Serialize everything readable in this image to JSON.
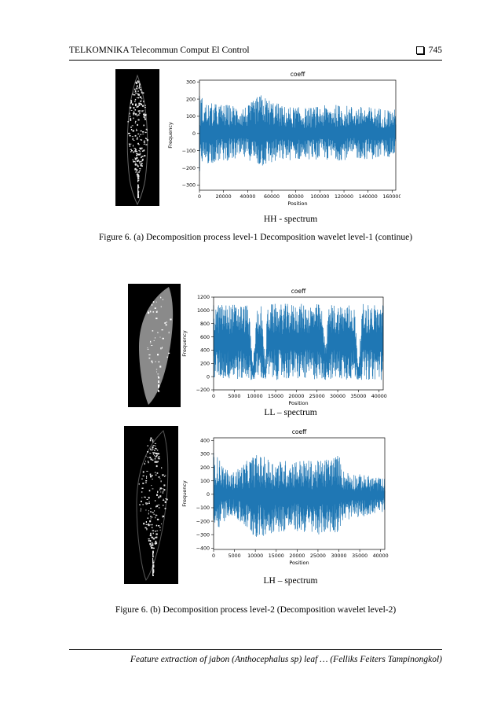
{
  "header": {
    "journal": "TELKOMNIKA Telecommun Comput El Control",
    "page": "745"
  },
  "captions": {
    "hh": "HH - spectrum",
    "fig6a": "Figure 6. (a) Decomposition process level-1 Decomposition wavelet level-1 (continue)",
    "ll": "LL – spectrum",
    "lh": "LH – spectrum",
    "fig6b": "Figure 6. (b) Decomposition process level-2 (Decomposition wavelet level-2)"
  },
  "footer": "Feature extraction of jabon (Anthocephalus sp) leaf … (Felliks Feiters Tampinongkol)",
  "colors": {
    "series": "#1f77b4"
  },
  "chart_data": [
    {
      "type": "line",
      "title": "coeff",
      "xlabel": "Position",
      "ylabel": "Frequency",
      "xlim": [
        0,
        163000
      ],
      "ylim": [
        -330,
        310
      ],
      "xticks": [
        0,
        20000,
        40000,
        60000,
        80000,
        100000,
        120000,
        140000,
        160000
      ],
      "yticks": [
        -300,
        -200,
        -100,
        0,
        100,
        200,
        300
      ],
      "ytick_labels": [
        "−300",
        "−200",
        "−100",
        "0",
        "100",
        "200",
        "300"
      ],
      "envelope": {
        "x": [
          0,
          5000,
          20000,
          40000,
          50000,
          70000,
          90000,
          110000,
          130000,
          150000,
          163000
        ],
        "upper": [
          240,
          180,
          170,
          160,
          230,
          160,
          150,
          170,
          160,
          150,
          140
        ],
        "lower": [
          -250,
          -180,
          -160,
          -150,
          -200,
          -160,
          -150,
          -160,
          -150,
          -150,
          -130
        ]
      },
      "legend": "none"
    },
    {
      "type": "line",
      "title": "coeff",
      "xlabel": "Position",
      "ylabel": "Frequency",
      "xlim": [
        0,
        41000
      ],
      "ylim": [
        -200,
        1200
      ],
      "xticks": [
        0,
        5000,
        10000,
        15000,
        20000,
        25000,
        30000,
        35000,
        40000
      ],
      "yticks": [
        -200,
        0,
        200,
        400,
        600,
        800,
        1000,
        1200
      ],
      "ytick_labels": [
        "−200",
        "0",
        "200",
        "400",
        "600",
        "800",
        "1000",
        "1200"
      ],
      "envelope": {
        "x": [
          0,
          8000,
          8500,
          9500,
          10500,
          11500,
          12500,
          13000,
          26000,
          27000,
          28000,
          34000,
          35000,
          36000,
          41000
        ],
        "upper": [
          1100,
          1100,
          1050,
          150,
          1050,
          1100,
          150,
          1100,
          1100,
          500,
          1100,
          1100,
          150,
          1100,
          1100
        ],
        "lower": [
          -50,
          -50,
          -50,
          -50,
          -50,
          -50,
          -50,
          -50,
          -50,
          -50,
          -50,
          -50,
          -50,
          -50,
          -50
        ]
      },
      "legend": "none"
    },
    {
      "type": "line",
      "title": "coeff",
      "xlabel": "Position",
      "ylabel": "Frequency",
      "xlim": [
        0,
        41000
      ],
      "ylim": [
        -410,
        420
      ],
      "xticks": [
        0,
        5000,
        10000,
        15000,
        20000,
        25000,
        30000,
        35000,
        40000
      ],
      "yticks": [
        -400,
        -300,
        -200,
        -100,
        0,
        100,
        200,
        300,
        400
      ],
      "ytick_labels": [
        "−400",
        "−300",
        "−200",
        "−100",
        "0",
        "100",
        "200",
        "300",
        "400"
      ],
      "envelope": {
        "x": [
          0,
          4000,
          10000,
          15000,
          20000,
          25000,
          30000,
          31000,
          35000,
          41000
        ],
        "upper": [
          320,
          150,
          300,
          250,
          260,
          250,
          300,
          180,
          150,
          120
        ],
        "lower": [
          -300,
          -150,
          -330,
          -280,
          -280,
          -300,
          -280,
          -200,
          -170,
          -130
        ]
      },
      "legend": "none"
    }
  ]
}
